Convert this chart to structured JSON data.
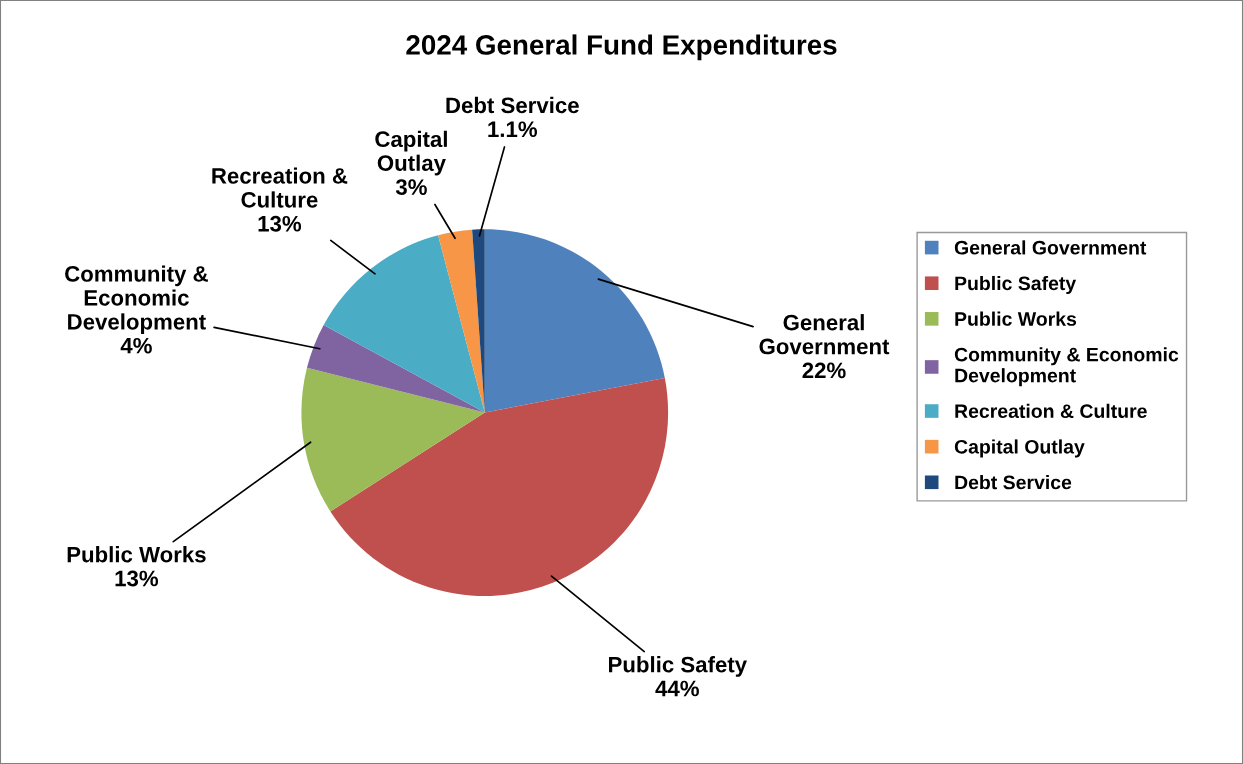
{
  "chart_data": {
    "type": "pie",
    "title": "2024 General Fund Expenditures",
    "categories": [
      "General Government",
      "Public Safety",
      "Public Works",
      "Community & Economic Development",
      "Recreation & Culture",
      "Capital Outlay",
      "Debt Service"
    ],
    "values": [
      22,
      44,
      13,
      4,
      13,
      3,
      1.1
    ],
    "value_labels": [
      "22%",
      "44%",
      "13%",
      "4%",
      "13%",
      "3%",
      "1.1%"
    ],
    "colors": [
      "#4f81bd",
      "#c0504d",
      "#9bbb59",
      "#8064a2",
      "#4bacc6",
      "#f79646",
      "#1f497d"
    ],
    "legend": "right"
  }
}
